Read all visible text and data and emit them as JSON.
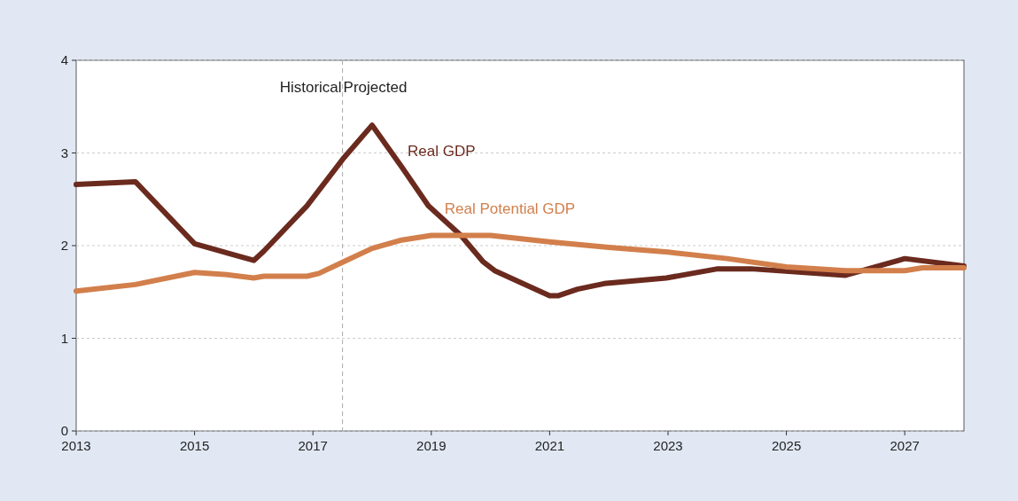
{
  "chart_data": {
    "type": "line",
    "xlim": [
      2013,
      2028
    ],
    "xticks": [
      2013,
      2015,
      2017,
      2019,
      2021,
      2023,
      2025,
      2027
    ],
    "ylim": [
      0,
      4
    ],
    "yticks": [
      0,
      1,
      2,
      3,
      4
    ],
    "grid": "y",
    "legend": false,
    "series": [
      {
        "name": "Real GDP",
        "color": "#6b2a1e",
        "x": [
          2013,
          2014,
          2015,
          2016,
          2016.17,
          2016.9,
          2017.5,
          2018,
          2018.5,
          2018.95,
          2019.5,
          2019.87,
          2020.07,
          2021,
          2021.15,
          2021.47,
          2021.92,
          2022.97,
          2023.84,
          2024.4,
          2026,
          2027,
          2028
        ],
        "values": [
          2.66,
          2.69,
          2.02,
          1.84,
          1.94,
          2.43,
          2.93,
          3.3,
          2.85,
          2.43,
          2.11,
          1.83,
          1.73,
          1.46,
          1.46,
          1.53,
          1.59,
          1.65,
          1.75,
          1.75,
          1.68,
          1.86,
          1.78
        ]
      },
      {
        "name": "Real Potential GDP",
        "color": "#d27f4c",
        "x": [
          2013,
          2014,
          2015,
          2015.5,
          2016,
          2016.17,
          2016.9,
          2017.1,
          2017.5,
          2018,
          2018.5,
          2019,
          2020,
          2021,
          2022,
          2023,
          2024,
          2025,
          2026,
          2027,
          2027.3,
          2028
        ],
        "values": [
          1.51,
          1.58,
          1.71,
          1.69,
          1.65,
          1.67,
          1.67,
          1.7,
          1.82,
          1.97,
          2.06,
          2.11,
          2.11,
          2.04,
          1.98,
          1.93,
          1.86,
          1.77,
          1.73,
          1.73,
          1.76,
          1.76
        ]
      }
    ],
    "ref_lines": [
      {
        "axis": "x",
        "value": 2017.5,
        "color": "#aaaaaa",
        "line_style": "dashed"
      }
    ],
    "annotations": [
      "Historical",
      "Projected"
    ]
  }
}
